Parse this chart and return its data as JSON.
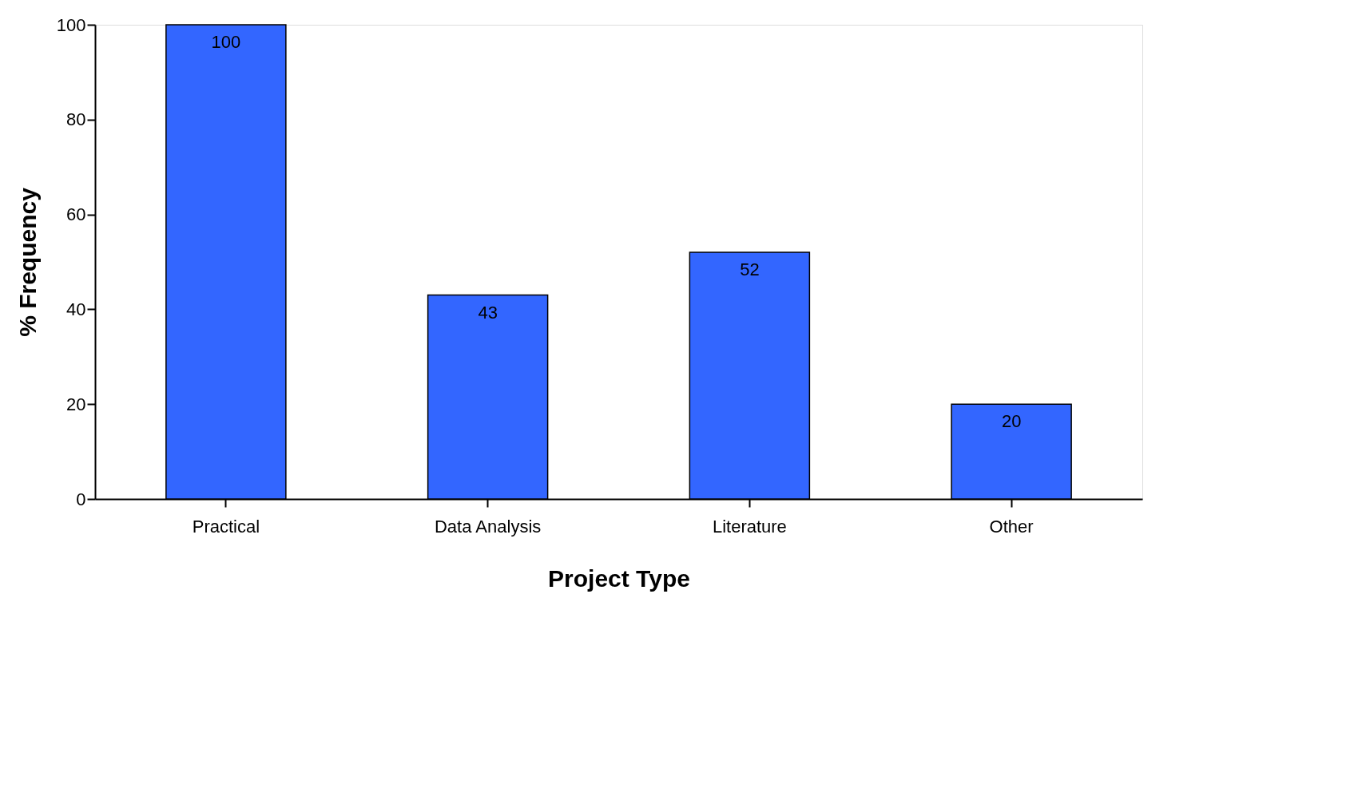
{
  "chart_data": {
    "type": "bar",
    "xlabel": "Project Type",
    "ylabel": "% Frequency",
    "categories": [
      "Practical",
      "Data Analysis",
      "Literature",
      "Other"
    ],
    "values": [
      100,
      43,
      52,
      20
    ],
    "color": "#3366ff",
    "ylim": [
      0,
      100
    ],
    "yticks": [
      0,
      20,
      40,
      60,
      80,
      100
    ],
    "grid": false,
    "data_labels": true
  }
}
